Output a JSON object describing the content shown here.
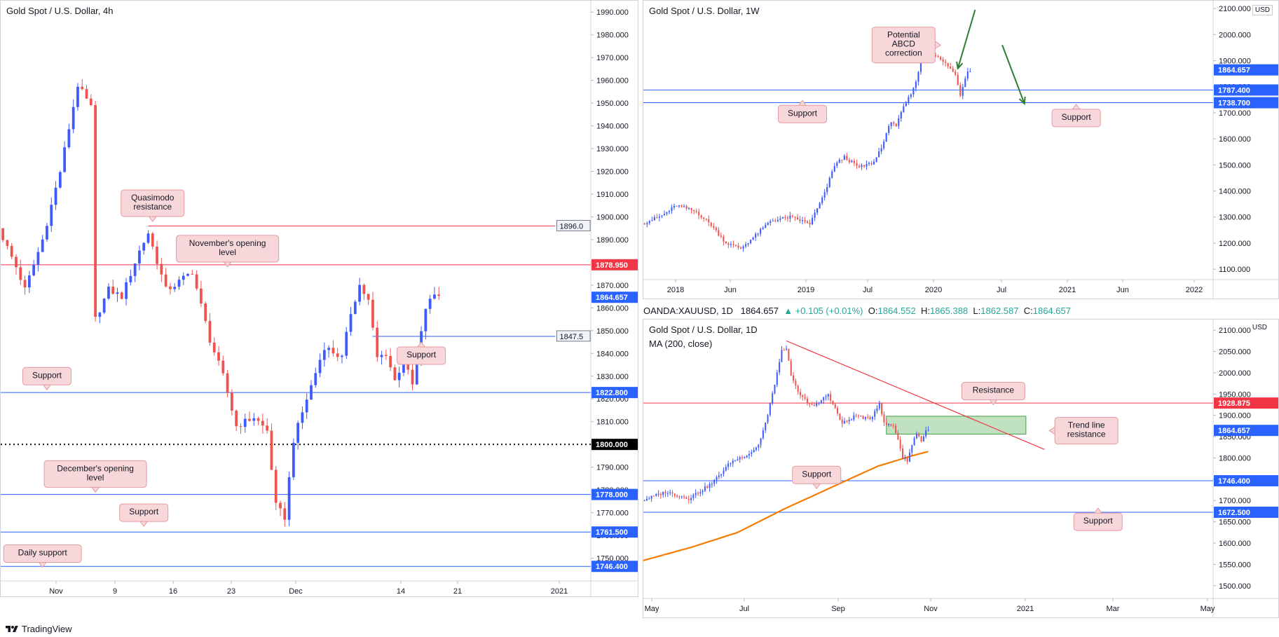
{
  "colors": {
    "bull": "#3d5afe",
    "bear": "#ef5350",
    "blue_line": "#2962ff",
    "red_line": "#f23645",
    "ma": "#f57c00",
    "callout_fill": "#f8d7da",
    "callout_border": "#e39aa0",
    "zone_fill": "#a5d6a7",
    "zone_border": "#43a047",
    "arrow": "#2e7d32"
  },
  "header": {
    "ohlc": {
      "symbol": "OANDA:XAUUSD, 1D",
      "last": "1864.657",
      "change": "▲ +0.105 (+0.01%)",
      "o_label": "O:",
      "o": "1864.552",
      "h_label": "H:",
      "h": "1865.388",
      "l_label": "L:",
      "l": "1862.587",
      "c_label": "C:",
      "c": "1864.657"
    }
  },
  "footer": {
    "brand": "TradingView",
    "icon": "tradingview-logo-icon"
  },
  "chart_data": [
    {
      "id": "h4",
      "type": "candlestick",
      "title": "Gold Spot / U.S. Dollar, 4h",
      "ylim": [
        1740,
        1995
      ],
      "y_ticks": [
        "1750.000",
        "1760.000",
        "1770.000",
        "1780.000",
        "1790.000",
        "1800.000",
        "1810.000",
        "1820.000",
        "1830.000",
        "1840.000",
        "1850.000",
        "1860.000",
        "1870.000",
        "1880.000",
        "1890.000",
        "1900.000",
        "1910.000",
        "1920.000",
        "1930.000",
        "1940.000",
        "1950.000",
        "1960.000",
        "1970.000",
        "1980.000",
        "1990.000"
      ],
      "x_ticks": [
        "Nov",
        "9",
        "16",
        "23",
        "Dec",
        "14",
        "21",
        "2021"
      ],
      "path": [
        [
          0,
          1895
        ],
        [
          4,
          1878
        ],
        [
          6,
          1868
        ],
        [
          10,
          1890
        ],
        [
          14,
          1920
        ],
        [
          18,
          1958
        ],
        [
          21,
          1948
        ],
        [
          22,
          1855
        ],
        [
          25,
          1868
        ],
        [
          28,
          1865
        ],
        [
          32,
          1885
        ],
        [
          34,
          1893
        ],
        [
          38,
          1868
        ],
        [
          40,
          1870
        ],
        [
          44,
          1876
        ],
        [
          48,
          1846
        ],
        [
          51,
          1830
        ],
        [
          54,
          1808
        ],
        [
          58,
          1812
        ],
        [
          61,
          1806
        ],
        [
          63,
          1773
        ],
        [
          65,
          1768
        ],
        [
          67,
          1802
        ],
        [
          70,
          1820
        ],
        [
          74,
          1843
        ],
        [
          78,
          1838
        ],
        [
          80,
          1858
        ],
        [
          82,
          1870
        ],
        [
          84,
          1863
        ],
        [
          86,
          1838
        ],
        [
          88,
          1840
        ],
        [
          90,
          1828
        ],
        [
          92,
          1837
        ],
        [
          94,
          1826
        ],
        [
          97,
          1860
        ],
        [
          99,
          1866
        ]
      ],
      "candles_total": 134,
      "candles_drawn": 100,
      "lines": [
        {
          "price": 1896.0,
          "label": "1896.0",
          "kind": "red",
          "from": 0.25,
          "to": 0.94,
          "tag": "plain"
        },
        {
          "price": 1878.95,
          "label": "1878.950",
          "kind": "red",
          "from": 0,
          "to": 1,
          "tag": "red"
        },
        {
          "price": 1847.5,
          "label": "1847.5",
          "kind": "blue",
          "from": 0.63,
          "to": 0.94,
          "tag": "plain"
        },
        {
          "price": 1822.8,
          "label": "1822.800",
          "kind": "blue",
          "from": 0,
          "to": 1,
          "tag": "blue"
        },
        {
          "price": 1800.0,
          "label": "1800.000",
          "kind": "dotted",
          "from": 0,
          "to": 1,
          "tag": "black"
        },
        {
          "price": 1778.0,
          "label": "1778.000",
          "kind": "blue",
          "from": 0,
          "to": 1,
          "tag": "blue"
        },
        {
          "price": 1761.5,
          "label": "1761.500",
          "kind": "blue",
          "from": 0,
          "to": 1,
          "tag": "blue"
        },
        {
          "price": 1746.4,
          "label": "1746.400",
          "kind": "blue",
          "from": 0,
          "to": 1,
          "tag": "blue"
        }
      ],
      "last_price": {
        "price": 1864.657,
        "label": "1864.657"
      },
      "callouts": [
        {
          "lines": [
            "Quasimodo",
            "resistance"
          ],
          "index": 34,
          "price": 1906,
          "pointer": "down"
        },
        {
          "lines": [
            "November's opening",
            "level"
          ],
          "index": 51,
          "price": 1886,
          "pointer": "down"
        },
        {
          "lines": [
            "Support"
          ],
          "index": 95,
          "price": 1839,
          "pointer": "up"
        },
        {
          "lines": [
            "Support"
          ],
          "index": 10,
          "price": 1830,
          "pointer": "down"
        },
        {
          "lines": [
            "December's opening",
            "level"
          ],
          "index": 21,
          "price": 1787,
          "pointer": "down"
        },
        {
          "lines": [
            "Support"
          ],
          "index": 32,
          "price": 1770,
          "pointer": "down"
        },
        {
          "lines": [
            "Daily support"
          ],
          "index": 9,
          "price": 1752,
          "pointer": "down"
        }
      ]
    },
    {
      "id": "w1",
      "type": "candlestick",
      "title": "Gold Spot / U.S. Dollar, 1W",
      "unit_label": "USD",
      "ylim": [
        1060,
        2130
      ],
      "y_ticks": [
        "1100.000",
        "1200.000",
        "1300.000",
        "1400.000",
        "1500.000",
        "1600.000",
        "1700.000",
        "1800.000",
        "1900.000",
        "2000.000",
        "2100.000"
      ],
      "x_ticks": [
        "2018",
        "Jun",
        "2019",
        "Jul",
        "2020",
        "Jul",
        "2021",
        "Jun",
        "2022"
      ],
      "path": [
        [
          0,
          1275
        ],
        [
          8,
          1305
        ],
        [
          14,
          1345
        ],
        [
          22,
          1320
        ],
        [
          28,
          1270
        ],
        [
          34,
          1200
        ],
        [
          40,
          1180
        ],
        [
          46,
          1230
        ],
        [
          52,
          1285
        ],
        [
          60,
          1300
        ],
        [
          68,
          1275
        ],
        [
          74,
          1390
        ],
        [
          78,
          1500
        ],
        [
          82,
          1530
        ],
        [
          88,
          1490
        ],
        [
          94,
          1510
        ],
        [
          98,
          1590
        ],
        [
          101,
          1670
        ],
        [
          103,
          1650
        ],
        [
          106,
          1720
        ],
        [
          110,
          1790
        ],
        [
          112,
          1860
        ],
        [
          114,
          1980
        ],
        [
          116,
          1945
        ],
        [
          120,
          1910
        ],
        [
          124,
          1880
        ],
        [
          127,
          1845
        ],
        [
          129,
          1770
        ],
        [
          132,
          1864
        ]
      ],
      "candles_total": 231,
      "candles_drawn": 133,
      "lines": [
        {
          "price": 1787.4,
          "label": "1787.400",
          "kind": "blue",
          "from": 0,
          "to": 1,
          "tag": "blue"
        },
        {
          "price": 1738.7,
          "label": "1738.700",
          "kind": "blue",
          "from": 0,
          "to": 1,
          "tag": "blue"
        }
      ],
      "last_price": {
        "price": 1864.657,
        "label": "1864.657"
      },
      "callouts": [
        {
          "lines": [
            "Potential",
            "ABCD",
            "correction"
          ],
          "index": 105,
          "price": 1960,
          "pointer": "right"
        },
        {
          "lines": [
            "Support"
          ],
          "index": 64,
          "price": 1695,
          "pointer": "up"
        },
        {
          "lines": [
            "Support"
          ],
          "index": 175,
          "price": 1680,
          "pointer": "up"
        }
      ],
      "arrows": [
        {
          "from": [
            134,
            2095
          ],
          "to": [
            127,
            1870
          ]
        },
        {
          "from": [
            145,
            1960
          ],
          "to": [
            154,
            1735
          ]
        }
      ]
    },
    {
      "id": "d1",
      "type": "candlestick",
      "title": "Gold Spot / U.S. Dollar, 1D",
      "unit_label": "USD",
      "indicator": "MA (200, close)",
      "ylim": [
        1470,
        2125
      ],
      "y_ticks": [
        "1500.000",
        "1550.000",
        "1600.000",
        "1650.000",
        "1700.000",
        "1750.000",
        "1800.000",
        "1850.000",
        "1900.000",
        "1950.000",
        "2000.000",
        "2050.000",
        "2100.000"
      ],
      "x_ticks": [
        "May",
        "Jul",
        "Sep",
        "Nov",
        "2021",
        "Mar",
        "May"
      ],
      "path": [
        [
          0,
          1700
        ],
        [
          10,
          1720
        ],
        [
          20,
          1705
        ],
        [
          30,
          1740
        ],
        [
          38,
          1790
        ],
        [
          46,
          1810
        ],
        [
          50,
          1830
        ],
        [
          54,
          1900
        ],
        [
          60,
          2050
        ],
        [
          62,
          2060
        ],
        [
          64,
          1990
        ],
        [
          68,
          1945
        ],
        [
          74,
          1920
        ],
        [
          80,
          1950
        ],
        [
          86,
          1880
        ],
        [
          92,
          1900
        ],
        [
          98,
          1890
        ],
        [
          102,
          1930
        ],
        [
          104,
          1880
        ],
        [
          108,
          1875
        ],
        [
          110,
          1845
        ],
        [
          112,
          1800
        ],
        [
          114,
          1795
        ],
        [
          116,
          1830
        ],
        [
          118,
          1860
        ],
        [
          120,
          1840
        ],
        [
          122,
          1864
        ]
      ],
      "candles_total": 245,
      "candles_drawn": 123,
      "ma": [
        [
          -18,
          1532
        ],
        [
          0,
          1560
        ],
        [
          20,
          1590
        ],
        [
          40,
          1625
        ],
        [
          60,
          1680
        ],
        [
          80,
          1730
        ],
        [
          100,
          1780
        ],
        [
          115,
          1805
        ],
        [
          122,
          1815
        ]
      ],
      "trendline": {
        "from": [
          61,
          2075
        ],
        "to": [
          172,
          1820
        ]
      },
      "zone": {
        "from": 104,
        "to": 164,
        "y_top": 1898,
        "y_bottom": 1856
      },
      "lines": [
        {
          "price": 1928.875,
          "label": "1928.875",
          "kind": "red",
          "from": 0,
          "to": 1,
          "tag": "red"
        },
        {
          "price": 1746.4,
          "label": "1746.400",
          "kind": "blue",
          "from": 0,
          "to": 1,
          "tag": "blue"
        },
        {
          "price": 1672.5,
          "label": "1672.500",
          "kind": "blue",
          "from": 0,
          "to": 1,
          "tag": "blue"
        }
      ],
      "last_price": {
        "price": 1864.657,
        "label": "1864.657"
      },
      "callouts": [
        {
          "lines": [
            "Resistance"
          ],
          "index": 150,
          "price": 1957,
          "pointer": "down"
        },
        {
          "lines": [
            "Trend line",
            "resistance"
          ],
          "index": 190,
          "price": 1864,
          "pointer": "left"
        },
        {
          "lines": [
            "Support"
          ],
          "index": 74,
          "price": 1760,
          "pointer": "down"
        },
        {
          "lines": [
            "Support"
          ],
          "index": 195,
          "price": 1650,
          "pointer": "up"
        }
      ]
    }
  ]
}
